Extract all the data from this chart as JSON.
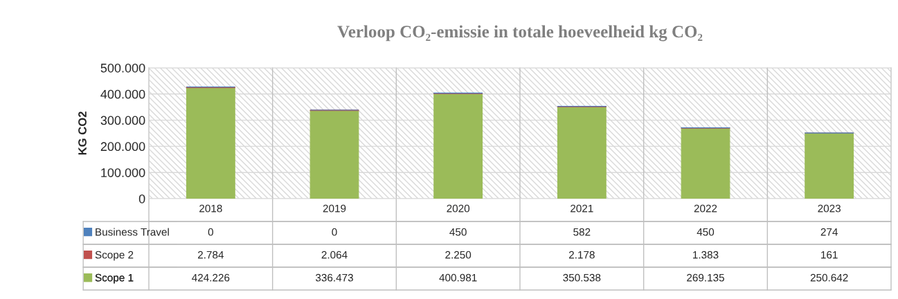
{
  "chart_data": {
    "type": "bar",
    "stacked": true,
    "title": "Verloop CO₂-emissie in totale hoeveelheid kg CO₂",
    "ylabel": "KG CO2",
    "categories": [
      "2018",
      "2019",
      "2020",
      "2021",
      "2022",
      "2023"
    ],
    "series": [
      {
        "name": "Scope 1",
        "color": "#9bbb59",
        "values": [
          424226,
          336473,
          400981,
          350538,
          269135,
          250642
        ],
        "value_labels": [
          "424.226",
          "336.473",
          "400.981",
          "350.538",
          "269.135",
          "250.642"
        ]
      },
      {
        "name": "Scope 2",
        "color": "#c0504d",
        "values": [
          2784,
          2064,
          2250,
          2178,
          1383,
          161
        ],
        "value_labels": [
          "2.784",
          "2.064",
          "2.250",
          "2.178",
          "1.383",
          "161"
        ]
      },
      {
        "name": "Business Travel",
        "color": "#4f81bd",
        "values": [
          0,
          0,
          450,
          582,
          450,
          274
        ],
        "value_labels": [
          "0",
          "0",
          "450",
          "582",
          "450",
          "274"
        ]
      }
    ],
    "ylim": [
      0,
      500000
    ],
    "yticks": [
      {
        "value": 0,
        "label": "0"
      },
      {
        "value": 100000,
        "label": "100.000"
      },
      {
        "value": 200000,
        "label": "200.000"
      },
      {
        "value": 300000,
        "label": "300.000"
      },
      {
        "value": 400000,
        "label": "400.000"
      },
      {
        "value": 500000,
        "label": "500.000"
      }
    ],
    "grid": "y",
    "legend": "bottom left"
  }
}
